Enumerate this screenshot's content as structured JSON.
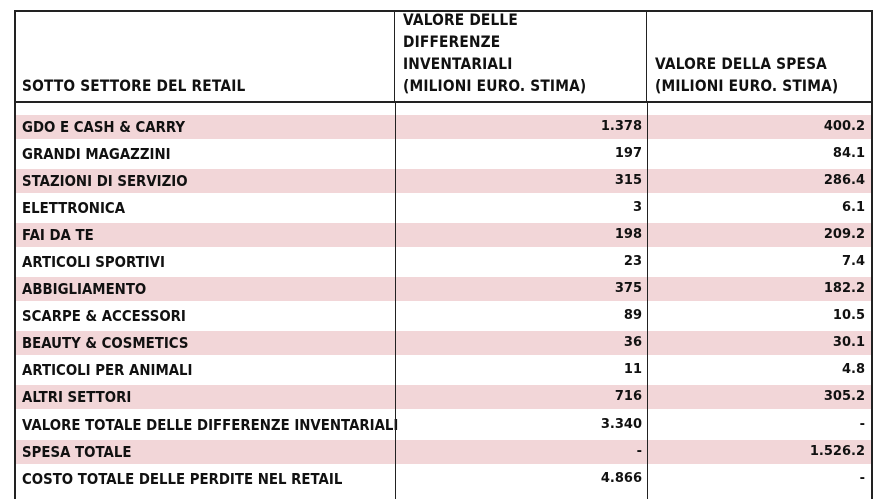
{
  "table": {
    "headers": [
      "SOTTO SETTORE DEL RETAIL",
      "VALORE DELLE\nDIFFERENZE INVENTARIALI\n(MILIONI EURO. STIMA)",
      "VALORE DELLA SPESA\n(MILIONI EURO. STIMA)"
    ],
    "rows": [
      {
        "sector": "GDO E CASH & CARRY",
        "differenze": "1.378",
        "spesa": "400.2",
        "shaded": true
      },
      {
        "sector": "GRANDI MAGAZZINI",
        "differenze": "197",
        "spesa": "84.1",
        "shaded": false
      },
      {
        "sector": "STAZIONI DI SERVIZIO",
        "differenze": "315",
        "spesa": "286.4",
        "shaded": true
      },
      {
        "sector": "ELETTRONICA",
        "differenze": "3",
        "spesa": "6.1",
        "shaded": false
      },
      {
        "sector": "FAI DA TE",
        "differenze": "198",
        "spesa": "209.2",
        "shaded": true
      },
      {
        "sector": "ARTICOLI SPORTIVI",
        "differenze": "23",
        "spesa": "7.4",
        "shaded": false
      },
      {
        "sector": "ABBIGLIAMENTO",
        "differenze": "375",
        "spesa": "182.2",
        "shaded": true
      },
      {
        "sector": "SCARPE & ACCESSORI",
        "differenze": "89",
        "spesa": "10.5",
        "shaded": false
      },
      {
        "sector": "BEAUTY & COSMETICS",
        "differenze": "36",
        "spesa": "30.1",
        "shaded": true
      },
      {
        "sector": "ARTICOLI PER ANIMALI",
        "differenze": "11",
        "spesa": "4.8",
        "shaded": false
      },
      {
        "sector": "ALTRI SETTORI",
        "differenze": "716",
        "spesa": "305.2",
        "shaded": true
      },
      {
        "sector": "VALORE TOTALE DELLE DIFFERENZE INVENTARIALI",
        "differenze": "3.340",
        "spesa": "-",
        "shaded": false
      },
      {
        "sector": "SPESA TOTALE",
        "differenze": "-",
        "spesa": "1.526.2",
        "shaded": true
      },
      {
        "sector": "COSTO TOTALE DELLE PERDITE NEL RETAIL",
        "differenze": "4.866",
        "spesa": "-",
        "shaded": false
      }
    ],
    "shade_color": "#f2d6d8"
  }
}
